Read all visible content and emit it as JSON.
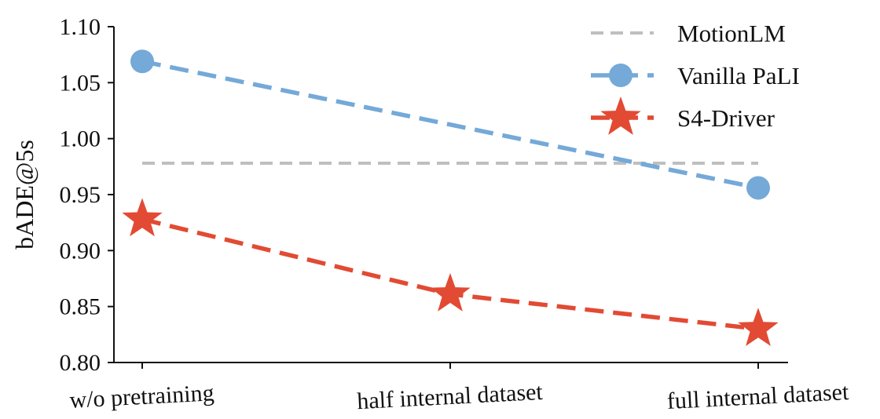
{
  "chart_data": {
    "type": "line",
    "categories": [
      "w/o pretraining",
      "half internal dataset",
      "full internal dataset"
    ],
    "ylabel": "bADE@5s",
    "ylim": [
      0.8,
      1.1
    ],
    "yticks": [
      "0.80",
      "0.85",
      "0.90",
      "0.95",
      "1.00",
      "1.05",
      "1.10"
    ],
    "grid": false,
    "legend_position": "top-right",
    "reference_line": {
      "name": "MotionLM",
      "value": 0.978,
      "color": "#bfbfbf",
      "style": "dashed"
    },
    "series": [
      {
        "name": "Vanilla PaLI",
        "color": "#74a9d8",
        "marker": "circle",
        "style": "dashed",
        "points": [
          {
            "category": "w/o pretraining",
            "value": 1.069
          },
          {
            "category": "full internal dataset",
            "value": 0.956
          }
        ]
      },
      {
        "name": "S4-Driver",
        "color": "#e24a33",
        "marker": "star",
        "style": "dashed",
        "points": [
          {
            "category": "w/o pretraining",
            "value": 0.928
          },
          {
            "category": "half internal dataset",
            "value": 0.861
          },
          {
            "category": "full internal dataset",
            "value": 0.83
          }
        ]
      }
    ]
  }
}
